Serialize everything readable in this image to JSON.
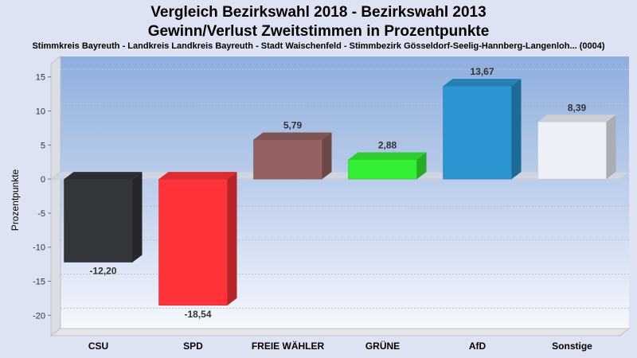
{
  "header": {
    "title_line1": "Vergleich Bezirkswahl 2018 - Bezirkswahl 2013",
    "title_line2": "Gewinn/Verlust Zweitstimmen in Prozentpunkte",
    "subtitle": "Stimmkreis Bayreuth - Landkreis Landkreis Bayreuth - Stadt Waischenfeld - Stimmbezirk Gösseldorf-Seelig-Hannberg-Langenloh... (0004)"
  },
  "chart_data": {
    "type": "bar",
    "title": "Vergleich Bezirkswahl 2018 - Bezirkswahl 2013 / Gewinn/Verlust Zweitstimmen in Prozentpunkte",
    "xlabel": "",
    "ylabel": "Prozentpunkte",
    "ylim": [
      -23,
      18
    ],
    "yticks": [
      15,
      10,
      5,
      0,
      -5,
      -10,
      -15,
      -20
    ],
    "grid": true,
    "categories": [
      "CSU",
      "SPD",
      "FREIE WÄHLER",
      "GRÜNE",
      "AfD",
      "Sonstige"
    ],
    "values": [
      -12.2,
      -18.54,
      5.79,
      2.88,
      13.67,
      8.39
    ],
    "value_labels": [
      "-12,20",
      "-18,54",
      "5,79",
      "2,88",
      "13,67",
      "8,39"
    ],
    "colors": [
      "#33363b",
      "#ff3339",
      "#946262",
      "#33ee33",
      "#2a95d0",
      "#eef0f8"
    ]
  }
}
